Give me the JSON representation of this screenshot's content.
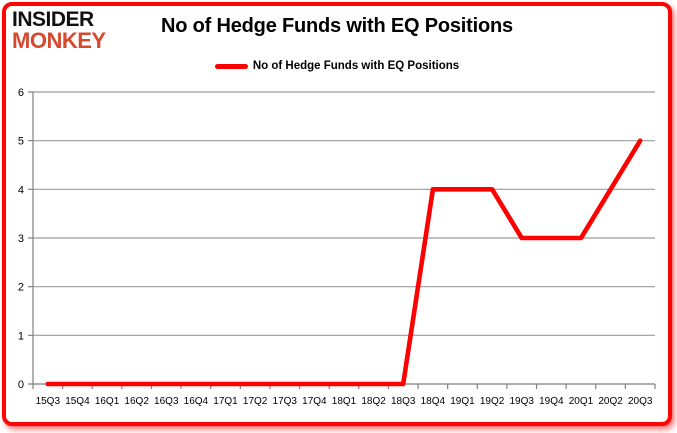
{
  "logo": {
    "line1": "INSIDER",
    "line2": "MONKEY"
  },
  "header": {
    "title": "No of Hedge Funds with EQ Positions"
  },
  "legend": {
    "label": "No of Hedge Funds with EQ Positions"
  },
  "colors": {
    "line_red": "#ff0000",
    "logo_red": "#d6492f",
    "border_red": "#fb0606",
    "gridline_gray": "#9b9b9b",
    "axis_gray": "#808080",
    "text_black": "#000000"
  },
  "chart_data": {
    "type": "line",
    "title": "No of Hedge Funds with EQ Positions",
    "series": [
      {
        "name": "No of Hedge Funds with EQ Positions",
        "color": "#ff0000",
        "values": [
          0,
          0,
          0,
          0,
          0,
          0,
          0,
          0,
          0,
          0,
          0,
          0,
          0,
          4,
          4,
          4,
          3,
          3,
          3,
          4,
          5
        ]
      }
    ],
    "categories": [
      "15Q3",
      "15Q4",
      "16Q1",
      "16Q2",
      "16Q3",
      "16Q4",
      "17Q1",
      "17Q2",
      "17Q3",
      "17Q4",
      "18Q1",
      "18Q2",
      "18Q3",
      "18Q4",
      "19Q1",
      "19Q2",
      "19Q3",
      "19Q4",
      "20Q1",
      "20Q2",
      "20Q3"
    ],
    "xlabel": "",
    "ylabel": "",
    "ylim": [
      0,
      6
    ],
    "yticks": [
      0,
      1,
      2,
      3,
      4,
      5,
      6
    ],
    "grid": "horizontal",
    "legend_position": "top-center"
  }
}
